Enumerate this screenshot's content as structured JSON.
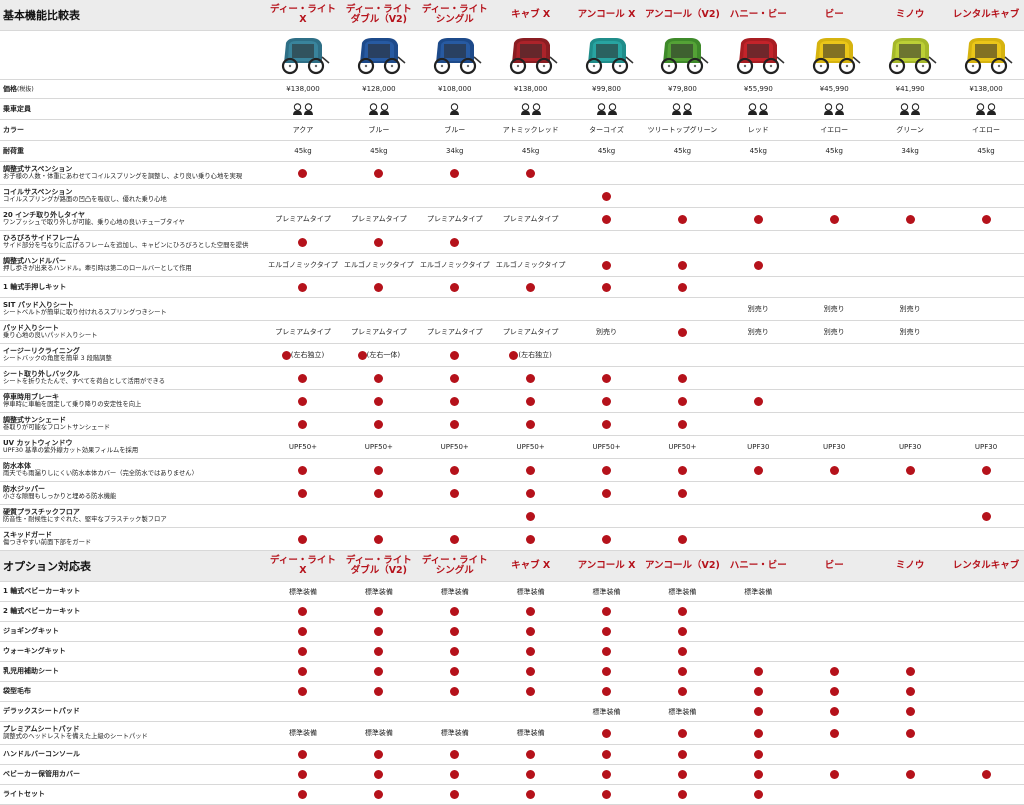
{
  "models": [
    {
      "name": "ディー・ライト\nX",
      "frame": "#2e6f86",
      "canopy": "#3c8aa1"
    },
    {
      "name": "ディー・ライト\nダブル（V2)",
      "frame": "#1d4a8a",
      "canopy": "#2a5ea8"
    },
    {
      "name": "ディー・ライト\nシングル",
      "frame": "#1d4a8a",
      "canopy": "#2a5ea8"
    },
    {
      "name": "キャブ X",
      "frame": "#8a1d22",
      "canopy": "#b3262d"
    },
    {
      "name": "アンコール X",
      "frame": "#1f8d8a",
      "canopy": "#2aaaa6"
    },
    {
      "name": "アンコール（V2)",
      "frame": "#3e8a2a",
      "canopy": "#5aa83a"
    },
    {
      "name": "ハニー・ビー",
      "frame": "#a81d22",
      "canopy": "#c9262d"
    },
    {
      "name": "ビー",
      "frame": "#d6b30f",
      "canopy": "#f0cb1c"
    },
    {
      "name": "ミノウ",
      "frame": "#a5b82a",
      "canopy": "#c2d43a"
    },
    {
      "name": "レンタルキャブ",
      "frame": "#d6b30f",
      "canopy": "#f0cb1c"
    }
  ],
  "sections": [
    {
      "title": "基本機能比較表",
      "show_images": true,
      "rows": [
        {
          "cat": "価格",
          "tag": "(税抜)",
          "h": 19,
          "cells": [
            "¥138,000",
            "¥128,000",
            "¥108,000",
            "¥138,000",
            "¥99,800",
            "¥79,800",
            "¥55,990",
            "¥45,990",
            "¥41,990",
            "¥138,000"
          ]
        },
        {
          "cat": "乗車定員",
          "h": 21,
          "cells": [
            "@2",
            "@2",
            "@1",
            "@2",
            "@2",
            "@2",
            "@2",
            "@2",
            "@2",
            "@2"
          ]
        },
        {
          "cat": "カラー",
          "h": 21,
          "cells": [
            "アクア",
            "ブルー",
            "ブルー",
            "アトミックレッド",
            "ターコイズ",
            "ツリートップグリーン",
            "レッド",
            "イエロー",
            "グリーン",
            "イエロー"
          ]
        },
        {
          "cat": "耐荷重",
          "h": 21,
          "cells": [
            "45kg",
            "45kg",
            "34kg",
            "45kg",
            "45kg",
            "45kg",
            "45kg",
            "45kg",
            "34kg",
            "45kg"
          ]
        },
        {
          "cat": "調整式サスペンション",
          "sub": "お子様の人数・体重にあわせてコイルスプリングを調整し、より良い乗り心地を実現",
          "h": 23,
          "cells": [
            "●",
            "●",
            "●",
            "●",
            "",
            "",
            "",
            "",
            "",
            ""
          ]
        },
        {
          "cat": "コイルサスペンション",
          "sub": "コイルスプリングが路面の凹凸を吸収し、優れた乗り心地",
          "h": 23,
          "cells": [
            "",
            "",
            "",
            "",
            "●",
            "",
            "",
            "",
            "",
            ""
          ]
        },
        {
          "cat": "20 インチ取り外しタイヤ",
          "sub": "ワンプッシュで取り外しが可能、乗り心地の良いチューブタイヤ",
          "h": 23,
          "cells": [
            "プレミアムタイプ",
            "プレミアムタイプ",
            "プレミアムタイプ",
            "プレミアムタイプ",
            "●",
            "●",
            "●",
            "●",
            "●",
            "●"
          ]
        },
        {
          "cat": "ひろびろサイドフレーム",
          "sub": "サイド部分を弓なりに広げるフレームを追加し、キャビンにひろびろとした空間を提供",
          "h": 23,
          "cells": [
            "●",
            "●",
            "●",
            "",
            "",
            "",
            "",
            "",
            "",
            ""
          ]
        },
        {
          "cat": "調整式ハンドルバー",
          "sub": "押し歩きが出来るハンドル。牽引時は第二のロールバーとして作用",
          "h": 23,
          "cells": [
            "エルゴノミックタイプ",
            "エルゴノミックタイプ",
            "エルゴノミックタイプ",
            "エルゴノミックタイプ",
            "●",
            "●",
            "●",
            "",
            "",
            ""
          ]
        },
        {
          "cat": "1 輪式手押しキット",
          "h": 21,
          "cells": [
            "●",
            "●",
            "●",
            "●",
            "●",
            "●",
            "",
            "",
            "",
            ""
          ]
        },
        {
          "cat": "SIT パッド入りシート",
          "sub": "シートベルトが簡単に取り付けれるスプリングつきシート",
          "h": 23,
          "cells": [
            "",
            "",
            "",
            "",
            "",
            "",
            "別売り",
            "別売り",
            "別売り",
            ""
          ]
        },
        {
          "cat": "パッド入りシート",
          "sub": "乗り心地の良いパッド入りシート",
          "h": 23,
          "cells": [
            "プレミアムタイプ",
            "プレミアムタイプ",
            "プレミアムタイプ",
            "プレミアムタイプ",
            "別売り",
            "●",
            "別売り",
            "別売り",
            "別売り",
            ""
          ]
        },
        {
          "cat": "イージーリクライニング",
          "sub": "シートバックの角度を簡単 3 段階調整",
          "h": 23,
          "cells": [
            "●(左右独立)",
            "●(左右一体)",
            "●",
            "●(左右独立)",
            "",
            "",
            "",
            "",
            "",
            ""
          ]
        },
        {
          "cat": "シート取り外しバックル",
          "sub": "シートを折りたたんで、すべてを荷台として活用ができる",
          "h": 23,
          "cells": [
            "●",
            "●",
            "●",
            "●",
            "●",
            "●",
            "",
            "",
            "",
            ""
          ]
        },
        {
          "cat": "停車時用ブレーキ",
          "sub": "停車時に車軸を固定して乗り降りの安定性を向上",
          "h": 23,
          "cells": [
            "●",
            "●",
            "●",
            "●",
            "●",
            "●",
            "●",
            "",
            "",
            ""
          ]
        },
        {
          "cat": "調整式サンシェード",
          "sub": "巻取りが可能なフロントサンシェード",
          "h": 23,
          "cells": [
            "●",
            "●",
            "●",
            "●",
            "●",
            "●",
            "",
            "",
            "",
            ""
          ]
        },
        {
          "cat": "UV カットウィンドウ",
          "sub": "UPF30 基準の紫外線カット効果フィルムを採用",
          "h": 23,
          "cells": [
            "UPF50+",
            "UPF50+",
            "UPF50+",
            "UPF50+",
            "UPF50+",
            "UPF50+",
            "UPF30",
            "UPF30",
            "UPF30",
            "UPF30"
          ]
        },
        {
          "cat": "防水本体",
          "sub": "雨天でも雨漏りしにくい防水本体カバー（完全防水ではありません）",
          "h": 23,
          "cells": [
            "●",
            "●",
            "●",
            "●",
            "●",
            "●",
            "●",
            "●",
            "●",
            "●"
          ]
        },
        {
          "cat": "防水ジッパー",
          "sub": "小さな隙間もしっかりと埋める防水機能",
          "h": 23,
          "cells": [
            "●",
            "●",
            "●",
            "●",
            "●",
            "●",
            "",
            "",
            "",
            ""
          ]
        },
        {
          "cat": "硬質プラスチックフロア",
          "sub": "防音性・耐候性にすぐれた、堅牢なプラスチック製フロア",
          "h": 23,
          "cells": [
            "",
            "",
            "",
            "●",
            "",
            "",
            "",
            "",
            "",
            "●"
          ]
        },
        {
          "cat": "スキッドガード",
          "sub": "傷つきやすい前面下部をガード",
          "h": 23,
          "cells": [
            "●",
            "●",
            "●",
            "●",
            "●",
            "●",
            "",
            "",
            "",
            ""
          ]
        }
      ]
    },
    {
      "title": "オプション対応表",
      "show_images": false,
      "rows": [
        {
          "cat": "1 輪式ベビーカーキット",
          "h": 20,
          "cells": [
            "標準装備",
            "標準装備",
            "標準装備",
            "標準装備",
            "標準装備",
            "標準装備",
            "標準装備",
            "",
            "",
            ""
          ]
        },
        {
          "cat": "2 輪式ベビーカーキット",
          "h": 20,
          "cells": [
            "●",
            "●",
            "●",
            "●",
            "●",
            "●",
            "",
            "",
            "",
            ""
          ]
        },
        {
          "cat": "ジョギングキット",
          "h": 20,
          "cells": [
            "●",
            "●",
            "●",
            "●",
            "●",
            "●",
            "",
            "",
            "",
            ""
          ]
        },
        {
          "cat": "ウォーキングキット",
          "h": 20,
          "cells": [
            "●",
            "●",
            "●",
            "●",
            "●",
            "●",
            "",
            "",
            "",
            ""
          ]
        },
        {
          "cat": "乳児用補助シート",
          "h": 20,
          "cells": [
            "●",
            "●",
            "●",
            "●",
            "●",
            "●",
            "●",
            "●",
            "●",
            ""
          ]
        },
        {
          "cat": "袋型毛布",
          "h": 20,
          "cells": [
            "●",
            "●",
            "●",
            "●",
            "●",
            "●",
            "●",
            "●",
            "●",
            ""
          ]
        },
        {
          "cat": "デラックスシートパッド",
          "h": 20,
          "cells": [
            "",
            "",
            "",
            "",
            "標準装備",
            "標準装備",
            "●",
            "●",
            "●",
            ""
          ]
        },
        {
          "cat": "プレミアムシートパッド",
          "sub": "調整式のヘッドレストを備えた上級のシートパッド",
          "h": 23,
          "cells": [
            "標準装備",
            "標準装備",
            "標準装備",
            "標準装備",
            "●",
            "●",
            "●",
            "●",
            "●",
            ""
          ]
        },
        {
          "cat": "ハンドルバーコンソール",
          "h": 20,
          "cells": [
            "●",
            "●",
            "●",
            "●",
            "●",
            "●",
            "●",
            "",
            "",
            ""
          ]
        },
        {
          "cat": "ベビーカー保管用カバー",
          "h": 20,
          "cells": [
            "●",
            "●",
            "●",
            "●",
            "●",
            "●",
            "●",
            "●",
            "●",
            "●"
          ]
        },
        {
          "cat": "ライトセット",
          "h": 20,
          "cells": [
            "●",
            "●",
            "●",
            "●",
            "●",
            "●",
            "●",
            "",
            "",
            ""
          ]
        }
      ]
    }
  ]
}
